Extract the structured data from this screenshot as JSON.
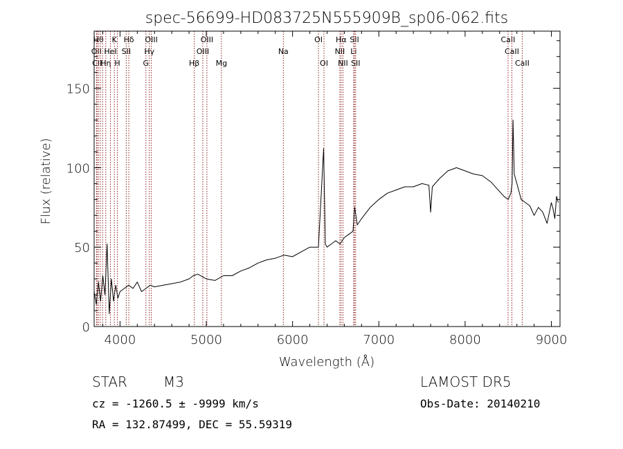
{
  "chart_data": {
    "type": "line",
    "title": "spec-56699-HD083725N555909B_sp06-062.fits",
    "xlabel": "Wavelength (Å)",
    "ylabel": "Flux (relative)",
    "xlim": [
      3700,
      9100
    ],
    "ylim": [
      0,
      186
    ],
    "x_ticks": [
      4000,
      5000,
      6000,
      7000,
      8000,
      9000
    ],
    "y_ticks": [
      0,
      50,
      100,
      150
    ],
    "grid": false,
    "line_color": "#000000",
    "marker_color": "#8b1a1a",
    "x": [
      3700,
      3725,
      3750,
      3775,
      3800,
      3825,
      3850,
      3875,
      3900,
      3925,
      3950,
      3975,
      4000,
      4050,
      4100,
      4150,
      4200,
      4250,
      4300,
      4350,
      4400,
      4500,
      4600,
      4700,
      4800,
      4850,
      4900,
      5000,
      5100,
      5200,
      5300,
      5400,
      5500,
      5600,
      5700,
      5800,
      5900,
      6000,
      6100,
      6200,
      6300,
      6360,
      6380,
      6400,
      6450,
      6500,
      6550,
      6600,
      6650,
      6700,
      6720,
      6750,
      6800,
      6900,
      7000,
      7100,
      7200,
      7300,
      7400,
      7500,
      7580,
      7600,
      7620,
      7700,
      7800,
      7900,
      8000,
      8100,
      8200,
      8300,
      8400,
      8450,
      8500,
      8530,
      8545,
      8555,
      8570,
      8600,
      8650,
      8700,
      8750,
      8800,
      8850,
      8900,
      8950,
      9000,
      9020,
      9040,
      9060,
      9080
    ],
    "y": [
      22,
      14,
      28,
      16,
      32,
      20,
      52,
      8,
      30,
      16,
      26,
      18,
      22,
      24,
      26,
      24,
      28,
      22,
      24,
      26,
      25,
      26,
      27,
      28,
      30,
      32,
      33,
      30,
      29,
      32,
      32,
      35,
      37,
      40,
      42,
      43,
      45,
      44,
      47,
      50,
      50,
      112,
      52,
      50,
      52,
      54,
      52,
      56,
      58,
      60,
      75,
      64,
      68,
      75,
      80,
      84,
      86,
      88,
      88,
      90,
      89,
      72,
      88,
      93,
      98,
      100,
      98,
      96,
      95,
      91,
      85,
      82,
      80,
      84,
      90,
      130,
      96,
      90,
      80,
      78,
      76,
      70,
      75,
      72,
      65,
      78,
      74,
      68,
      82,
      78
    ],
    "lines": [
      {
        "w": 3727,
        "label": "OII",
        "row": 1
      },
      {
        "w": 3734,
        "label": "CII",
        "row": 2
      },
      {
        "w": 3750,
        "label": "Hθ",
        "row": 0
      },
      {
        "w": 3771,
        "label": "",
        "row": 0
      },
      {
        "w": 3798,
        "label": "",
        "row": 0
      },
      {
        "w": 3835,
        "label": "Hη",
        "row": 2
      },
      {
        "w": 3889,
        "label": "HeI",
        "row": 1
      },
      {
        "w": 3934,
        "label": "K",
        "row": 0
      },
      {
        "w": 3969,
        "label": "H",
        "row": 2
      },
      {
        "w": 4072,
        "label": "SII",
        "row": 1
      },
      {
        "w": 4102,
        "label": "Hδ",
        "row": 0
      },
      {
        "w": 4300,
        "label": "G",
        "row": 2
      },
      {
        "w": 4340,
        "label": "Hγ",
        "row": 1
      },
      {
        "w": 4363,
        "label": "OIII",
        "row": 0
      },
      {
        "w": 4861,
        "label": "Hβ",
        "row": 2
      },
      {
        "w": 4959,
        "label": "OIII",
        "row": 1
      },
      {
        "w": 5007,
        "label": "OIII",
        "row": 0
      },
      {
        "w": 5175,
        "label": "Mg",
        "row": 2
      },
      {
        "w": 5893,
        "label": "Na",
        "row": 1
      },
      {
        "w": 6300,
        "label": "OI",
        "row": 0
      },
      {
        "w": 6364,
        "label": "OI",
        "row": 2
      },
      {
        "w": 6548,
        "label": "NII",
        "row": 1
      },
      {
        "w": 6563,
        "label": "Hα",
        "row": 0
      },
      {
        "w": 6584,
        "label": "NII",
        "row": 2
      },
      {
        "w": 6708,
        "label": "Li",
        "row": 1
      },
      {
        "w": 6717,
        "label": "SII",
        "row": 0
      },
      {
        "w": 6731,
        "label": "SII",
        "row": 2
      },
      {
        "w": 8498,
        "label": "CaII",
        "row": 0
      },
      {
        "w": 8542,
        "label": "CaII",
        "row": 1
      },
      {
        "w": 8662,
        "label": "CaII",
        "row": 2
      }
    ]
  },
  "info": {
    "class_label": "STAR",
    "subclass": "M3",
    "survey": "LAMOST DR5",
    "cz": "cz = -1260.5 ± -9999 km/s",
    "obs_date": "Obs-Date: 20140210",
    "coords": "RA = 132.87499, DEC =  55.59319"
  }
}
